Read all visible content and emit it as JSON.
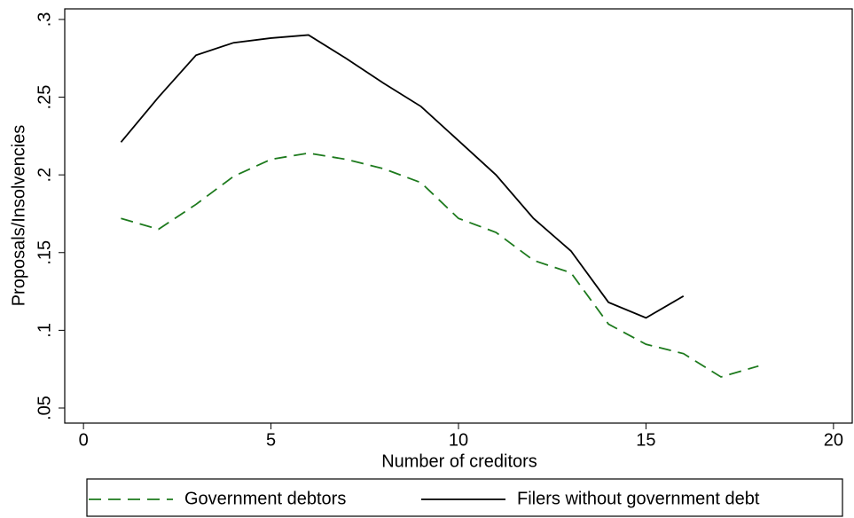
{
  "chart_data": {
    "type": "line",
    "xlabel": "Number of creditors",
    "ylabel": "Proposals/Insolvencies",
    "x": [
      1,
      2,
      3,
      4,
      5,
      6,
      7,
      8,
      9,
      10,
      11,
      12,
      13,
      14,
      15,
      16,
      17,
      18
    ],
    "series": [
      {
        "name": "Government debtors",
        "color": "#1d7a1d",
        "dash": true,
        "values": [
          0.172,
          0.165,
          0.181,
          0.199,
          0.21,
          0.214,
          0.21,
          0.204,
          0.195,
          0.172,
          0.163,
          0.145,
          0.137,
          0.104,
          0.091,
          0.085,
          0.07,
          0.077
        ]
      },
      {
        "name": "Filers without government debt",
        "color": "#000000",
        "dash": false,
        "values": [
          0.221,
          0.25,
          0.277,
          0.285,
          0.288,
          0.29,
          0.275,
          0.259,
          0.244,
          0.222,
          0.2,
          0.172,
          0.151,
          0.118,
          0.108,
          0.122,
          null,
          null
        ]
      }
    ],
    "xlim": [
      -0.5,
      20.5
    ],
    "ylim": [
      0.0403,
      0.3068
    ],
    "xticks": [
      0,
      5,
      10,
      15,
      20
    ],
    "yticks": [
      {
        "value": 0.05,
        "label": ".05"
      },
      {
        "value": 0.1,
        "label": ".1"
      },
      {
        "value": 0.15,
        "label": ".15"
      },
      {
        "value": 0.2,
        "label": ".2"
      },
      {
        "value": 0.25,
        "label": ".25"
      },
      {
        "value": 0.3,
        "label": ".3"
      }
    ],
    "grid": false,
    "legend": "bottom"
  }
}
